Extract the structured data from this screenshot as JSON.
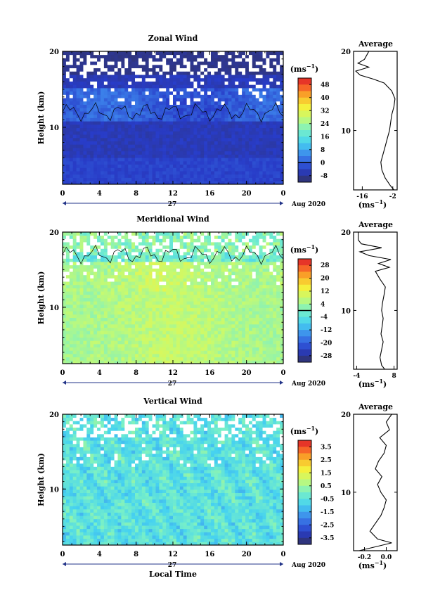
{
  "chart_data": [
    {
      "type": "heatmap",
      "title": "Zonal Wind",
      "xlabel": "",
      "ylabel": "Height (km)",
      "x_ticks": [
        "0",
        "4",
        "8",
        "12",
        "16",
        "20",
        "0"
      ],
      "xlim": [
        0,
        24
      ],
      "y_ticks": [
        "20",
        "10"
      ],
      "ylim": [
        2.5,
        20
      ],
      "day_label": "27",
      "date_label": "Aug 2020",
      "colorbar": {
        "unit_prefix": "(ms",
        "unit_exp": "−1",
        "unit_suffix": ")",
        "ticks": [
          "48",
          "40",
          "32",
          "24",
          "16",
          "8",
          "0",
          "-8"
        ],
        "range": [
          -12,
          52
        ],
        "zero_line": 0
      },
      "profile": {
        "title": "Average",
        "y_ticks": [
          "20",
          "10"
        ],
        "x_ticks": [
          "-16",
          "-2"
        ],
        "xlim": [
          -20,
          0
        ],
        "xlabel_prefix": "(ms",
        "xlabel_exp": "−1",
        "xlabel_suffix": ")",
        "heights": [
          2.5,
          3,
          4,
          5,
          6,
          7,
          8,
          9,
          10,
          11,
          12,
          13,
          14,
          15,
          16,
          16.5,
          17,
          17.5,
          18,
          18.5,
          19,
          20
        ],
        "values": [
          -1.5,
          -3,
          -5.5,
          -7,
          -7.5,
          -6.5,
          -5.5,
          -4.5,
          -3.5,
          -3,
          -2.5,
          -1.5,
          -1,
          -2.5,
          -6,
          -11,
          -17,
          -19,
          -13,
          -18,
          -15,
          -13
        ]
      }
    },
    {
      "type": "heatmap",
      "title": "Meridional Wind",
      "xlabel": "",
      "ylabel": "Height (km)",
      "x_ticks": [
        "0",
        "4",
        "8",
        "12",
        "16",
        "20",
        "0"
      ],
      "xlim": [
        0,
        24
      ],
      "y_ticks": [
        "20",
        "10"
      ],
      "ylim": [
        2.5,
        20
      ],
      "day_label": "27",
      "date_label": "Aug 2020",
      "colorbar": {
        "unit_prefix": "(ms",
        "unit_exp": "−1",
        "unit_suffix": ")",
        "ticks": [
          "28",
          "20",
          "12",
          "4",
          "-4",
          "-12",
          "-20",
          "-28"
        ],
        "range": [
          -32,
          32
        ],
        "zero_line": 0
      },
      "profile": {
        "title": "Average",
        "y_ticks": [
          "20",
          "10"
        ],
        "x_ticks": [
          "-4",
          "8"
        ],
        "xlim": [
          -5,
          9
        ],
        "xlabel_prefix": "(ms",
        "xlabel_exp": "−1",
        "xlabel_suffix": ")",
        "heights": [
          2.5,
          3,
          4,
          5,
          6,
          7,
          8,
          9,
          10,
          11,
          12,
          13,
          14,
          15,
          15.5,
          16,
          16.5,
          17,
          17.5,
          18,
          18.5,
          19,
          20
        ],
        "values": [
          5,
          4,
          3.5,
          4,
          4.5,
          3.8,
          4.2,
          4.5,
          4,
          4.3,
          4.8,
          5.2,
          3.5,
          2,
          6.5,
          3,
          7,
          0,
          -3,
          4,
          -2.5,
          -3.5,
          -3.5
        ]
      }
    },
    {
      "type": "heatmap",
      "title": "Vertical Wind",
      "xlabel": "Local Time",
      "ylabel": "Height (km)",
      "x_ticks": [
        "0",
        "4",
        "8",
        "12",
        "16",
        "20",
        "0"
      ],
      "xlim": [
        0,
        24
      ],
      "y_ticks": [
        "20",
        "10"
      ],
      "ylim": [
        2.5,
        20
      ],
      "day_label": "27",
      "date_label": "Aug 2020",
      "colorbar": {
        "unit_prefix": "(ms",
        "unit_exp": "−1",
        "unit_suffix": ")",
        "ticks": [
          "3.5",
          "2.5",
          "1.5",
          "0.5",
          "-0.5",
          "-1.5",
          "-2.5",
          "-3.5"
        ],
        "range": [
          -4,
          4
        ],
        "zero_line": null
      },
      "profile": {
        "title": "Average",
        "y_ticks": [
          "20",
          "10"
        ],
        "x_ticks": [
          "-0.2",
          "0.0"
        ],
        "xlim": [
          -0.3,
          0.1
        ],
        "xlabel_prefix": "(ms",
        "xlabel_exp": "−1",
        "xlabel_suffix": ")",
        "heights": [
          2.5,
          3,
          3.5,
          4,
          5,
          6,
          7,
          8,
          9,
          10,
          11,
          12,
          13,
          14,
          15,
          16,
          17,
          18,
          19,
          20
        ],
        "values": [
          -0.25,
          -0.1,
          0.05,
          -0.08,
          -0.15,
          -0.1,
          -0.05,
          -0.02,
          0.0,
          -0.05,
          -0.08,
          -0.04,
          -0.1,
          -0.07,
          -0.02,
          0.0,
          -0.06,
          0.03,
          0.0,
          0.05
        ]
      }
    }
  ]
}
